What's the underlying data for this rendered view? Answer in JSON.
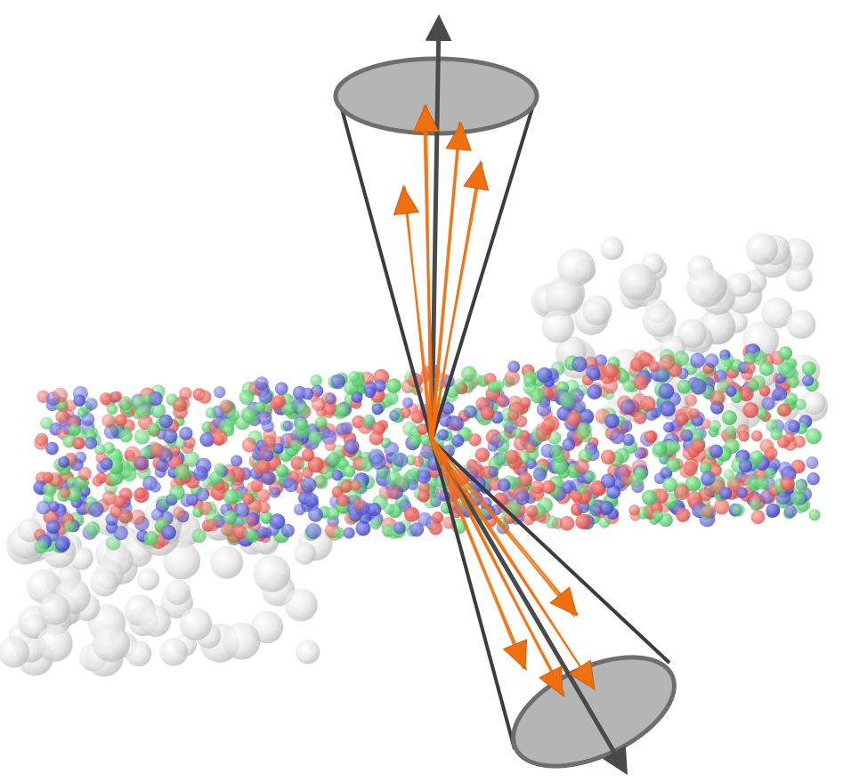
{
  "colors": {
    "background": "#ffffff",
    "axis": "#4a4a4a",
    "cone_edge": "#3c3c3c",
    "cone_cap_fill": "#b5b5b5",
    "cone_cap_stroke": "#6e6e6e",
    "particle_track": "#f07010",
    "quark_red": "#e8554d",
    "quark_green": "#5ccf6e",
    "quark_blue": "#5257d6",
    "remnant_white": "#dcdcdc"
  },
  "diagram": {
    "elements": [
      "upper-jet-cone",
      "lower-jet-cone",
      "jet-axis-arrow",
      "particle-tracks",
      "colored-parton-cloud",
      "beam-remnant-spheres"
    ]
  }
}
